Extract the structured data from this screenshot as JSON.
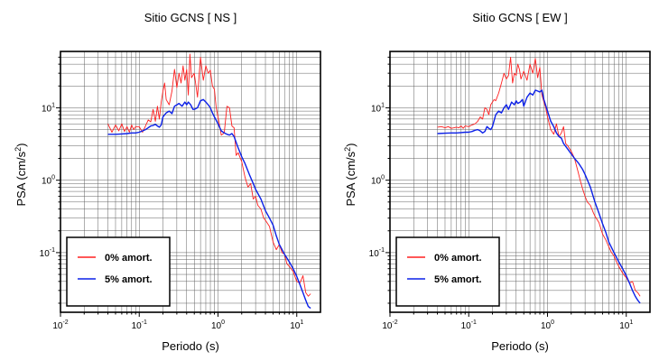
{
  "chart_data": [
    {
      "type": "line",
      "title": "Sitio GCNS [ NS ]",
      "xlabel": "Periodo (s)",
      "ylabel": "PSA (cm/s",
      "ylabel_sup": "2",
      "ylabel_end": ")",
      "xscale": "log",
      "yscale": "log",
      "xlim": [
        0.01,
        20
      ],
      "ylim": [
        0.015,
        60
      ],
      "grid": true,
      "legend": "bottom-left",
      "x_ticks": [
        {
          "base": "10",
          "exp": "-2"
        },
        {
          "base": "10",
          "exp": "-1"
        },
        {
          "base": "10",
          "exp": "0"
        },
        {
          "base": "10",
          "exp": "1"
        }
      ],
      "y_ticks": [
        {
          "base": "10",
          "exp": "-1"
        },
        {
          "base": "10",
          "exp": "0"
        },
        {
          "base": "10",
          "exp": "1"
        }
      ],
      "series": [
        {
          "name": "0% amort.",
          "color": "#ff2020",
          "x": [
            0.04,
            0.045,
            0.05,
            0.055,
            0.06,
            0.065,
            0.07,
            0.075,
            0.08,
            0.085,
            0.09,
            0.1,
            0.11,
            0.12,
            0.13,
            0.14,
            0.15,
            0.16,
            0.17,
            0.18,
            0.19,
            0.2,
            0.21,
            0.22,
            0.24,
            0.26,
            0.28,
            0.3,
            0.32,
            0.34,
            0.36,
            0.38,
            0.4,
            0.42,
            0.44,
            0.46,
            0.5,
            0.55,
            0.6,
            0.65,
            0.7,
            0.75,
            0.8,
            0.85,
            0.9,
            0.95,
            1.0,
            1.1,
            1.2,
            1.3,
            1.4,
            1.5,
            1.6,
            1.7,
            1.8,
            2.0,
            2.2,
            2.4,
            2.6,
            2.8,
            3.0,
            3.2,
            3.5,
            3.8,
            4.0,
            4.5,
            5.0,
            5.5,
            6.0,
            6.5,
            7.0,
            7.5,
            8.0,
            9.0,
            10.0,
            11.0,
            12.0,
            13.0,
            14.0,
            15.0
          ],
          "y": [
            6.0,
            4.6,
            5.8,
            4.8,
            6.0,
            4.7,
            5.5,
            4.6,
            5.8,
            5.0,
            5.5,
            5.5,
            4.6,
            5.6,
            6.8,
            6.4,
            9.5,
            6.5,
            10.5,
            7.0,
            12.0,
            17.0,
            22.0,
            13.0,
            11.0,
            17.0,
            34.0,
            19.0,
            30.0,
            22.0,
            38.0,
            24.0,
            34.0,
            15.0,
            55.0,
            26.0,
            30.0,
            14.0,
            50.0,
            24.0,
            38.0,
            30.0,
            33.0,
            20.0,
            18.0,
            10.0,
            7.5,
            4.2,
            4.5,
            10.5,
            10.0,
            5.6,
            5.3,
            2.2,
            2.4,
            1.8,
            1.1,
            0.8,
            0.9,
            0.55,
            0.6,
            0.45,
            0.4,
            0.3,
            0.28,
            0.23,
            0.14,
            0.11,
            0.13,
            0.1,
            0.095,
            0.07,
            0.065,
            0.055,
            0.04,
            0.038,
            0.048,
            0.028,
            0.025,
            0.027
          ]
        },
        {
          "name": "5% amort.",
          "color": "#0b20e8",
          "x": [
            0.04,
            0.05,
            0.06,
            0.07,
            0.08,
            0.09,
            0.1,
            0.11,
            0.12,
            0.13,
            0.14,
            0.15,
            0.16,
            0.17,
            0.18,
            0.19,
            0.2,
            0.22,
            0.24,
            0.26,
            0.28,
            0.3,
            0.32,
            0.35,
            0.38,
            0.4,
            0.42,
            0.45,
            0.48,
            0.5,
            0.55,
            0.6,
            0.65,
            0.7,
            0.75,
            0.8,
            0.85,
            0.9,
            1.0,
            1.1,
            1.2,
            1.3,
            1.4,
            1.5,
            1.6,
            1.8,
            2.0,
            2.2,
            2.5,
            2.8,
            3.0,
            3.5,
            4.0,
            4.5,
            5.0,
            5.5,
            6.0,
            7.0,
            8.0,
            9.0,
            10.0,
            11.0,
            12.0,
            13.0,
            14.0,
            15.0
          ],
          "y": [
            4.3,
            4.3,
            4.35,
            4.4,
            4.5,
            4.5,
            4.6,
            4.8,
            5.0,
            5.3,
            5.6,
            5.7,
            5.9,
            5.6,
            5.4,
            5.8,
            7.5,
            8.5,
            9.0,
            8.3,
            10.5,
            11.0,
            11.5,
            10.5,
            12.0,
            11.0,
            12.0,
            11.0,
            9.5,
            9.5,
            10.0,
            12.5,
            13.0,
            12.0,
            11.0,
            10.0,
            8.5,
            7.5,
            6.0,
            4.8,
            4.5,
            4.3,
            4.2,
            4.4,
            4.0,
            2.8,
            2.1,
            1.7,
            1.2,
            0.9,
            0.75,
            0.55,
            0.38,
            0.3,
            0.24,
            0.17,
            0.13,
            0.095,
            0.075,
            0.06,
            0.047,
            0.036,
            0.028,
            0.022,
            0.018,
            0.017
          ]
        }
      ]
    },
    {
      "type": "line",
      "title": "Sitio GCNS [ EW ]",
      "xlabel": "Periodo (s)",
      "ylabel": "PSA (cm/s",
      "ylabel_sup": "2",
      "ylabel_end": ")",
      "xscale": "log",
      "yscale": "log",
      "xlim": [
        0.01,
        20
      ],
      "ylim": [
        0.015,
        60
      ],
      "grid": true,
      "legend": "bottom-left",
      "x_ticks": [
        {
          "base": "10",
          "exp": "-2"
        },
        {
          "base": "10",
          "exp": "-1"
        },
        {
          "base": "10",
          "exp": "0"
        },
        {
          "base": "10",
          "exp": "1"
        }
      ],
      "y_ticks": [
        {
          "base": "10",
          "exp": "-1"
        },
        {
          "base": "10",
          "exp": "0"
        },
        {
          "base": "10",
          "exp": "1"
        }
      ],
      "series": [
        {
          "name": "0% amort.",
          "color": "#ff2020",
          "x": [
            0.04,
            0.045,
            0.05,
            0.055,
            0.06,
            0.065,
            0.07,
            0.075,
            0.08,
            0.085,
            0.09,
            0.1,
            0.11,
            0.12,
            0.13,
            0.14,
            0.15,
            0.16,
            0.17,
            0.18,
            0.19,
            0.2,
            0.21,
            0.22,
            0.24,
            0.26,
            0.28,
            0.3,
            0.32,
            0.34,
            0.36,
            0.38,
            0.4,
            0.42,
            0.44,
            0.46,
            0.5,
            0.55,
            0.6,
            0.65,
            0.7,
            0.75,
            0.8,
            0.85,
            0.9,
            0.95,
            1.0,
            1.1,
            1.2,
            1.3,
            1.4,
            1.5,
            1.6,
            1.7,
            1.8,
            2.0,
            2.2,
            2.4,
            2.6,
            2.8,
            3.0,
            3.2,
            3.5,
            3.8,
            4.0,
            4.5,
            5.0,
            5.5,
            6.0,
            6.5,
            7.0,
            7.5,
            8.0,
            9.0,
            10.0,
            11.0,
            12.0,
            13.0,
            14.0,
            15.0
          ],
          "y": [
            5.4,
            5.5,
            5.3,
            5.5,
            5.2,
            5.3,
            5.4,
            5.3,
            5.6,
            5.2,
            5.6,
            5.5,
            5.8,
            6.0,
            6.5,
            7.5,
            7.0,
            10.0,
            9.5,
            8.0,
            11.0,
            12.0,
            13.0,
            12.5,
            16.0,
            22.0,
            30.0,
            25.0,
            28.0,
            50.0,
            22.0,
            30.0,
            28.0,
            40.0,
            34.0,
            25.0,
            32.0,
            24.0,
            40.0,
            30.0,
            48.0,
            26.0,
            36.0,
            15.0,
            12.0,
            10.0,
            7.5,
            5.0,
            4.3,
            6.0,
            4.0,
            4.5,
            5.5,
            3.2,
            3.0,
            2.5,
            2.0,
            1.4,
            1.0,
            0.75,
            0.6,
            0.5,
            0.45,
            0.36,
            0.32,
            0.26,
            0.18,
            0.15,
            0.12,
            0.1,
            0.09,
            0.075,
            0.065,
            0.052,
            0.045,
            0.038,
            0.04,
            0.03,
            0.028,
            0.025
          ]
        },
        {
          "name": "5% amort.",
          "color": "#0b20e8",
          "x": [
            0.04,
            0.05,
            0.06,
            0.07,
            0.08,
            0.09,
            0.1,
            0.11,
            0.12,
            0.13,
            0.14,
            0.15,
            0.16,
            0.17,
            0.18,
            0.19,
            0.2,
            0.22,
            0.24,
            0.26,
            0.28,
            0.3,
            0.32,
            0.35,
            0.38,
            0.4,
            0.42,
            0.45,
            0.48,
            0.5,
            0.55,
            0.6,
            0.65,
            0.7,
            0.75,
            0.8,
            0.85,
            0.9,
            1.0,
            1.1,
            1.2,
            1.3,
            1.4,
            1.5,
            1.6,
            1.8,
            2.0,
            2.2,
            2.5,
            2.8,
            3.0,
            3.5,
            4.0,
            4.5,
            5.0,
            5.5,
            6.0,
            7.0,
            8.0,
            9.0,
            10.0,
            11.0,
            12.0,
            13.0,
            14.0,
            15.0
          ],
          "y": [
            4.4,
            4.45,
            4.5,
            4.5,
            4.55,
            4.6,
            4.6,
            4.7,
            4.9,
            5.0,
            4.8,
            4.5,
            4.7,
            5.5,
            5.2,
            5.0,
            5.5,
            8.0,
            9.0,
            8.5,
            10.0,
            11.0,
            9.5,
            12.0,
            11.0,
            12.5,
            11.5,
            12.0,
            13.0,
            10.5,
            14.0,
            16.0,
            15.0,
            17.5,
            17.0,
            16.5,
            17.5,
            13.0,
            9.0,
            6.5,
            5.5,
            4.5,
            4.0,
            3.8,
            3.2,
            2.7,
            2.3,
            2.0,
            1.7,
            1.4,
            1.2,
            0.8,
            0.5,
            0.35,
            0.25,
            0.19,
            0.14,
            0.1,
            0.075,
            0.06,
            0.048,
            0.038,
            0.03,
            0.025,
            0.022,
            0.02
          ]
        }
      ]
    }
  ]
}
